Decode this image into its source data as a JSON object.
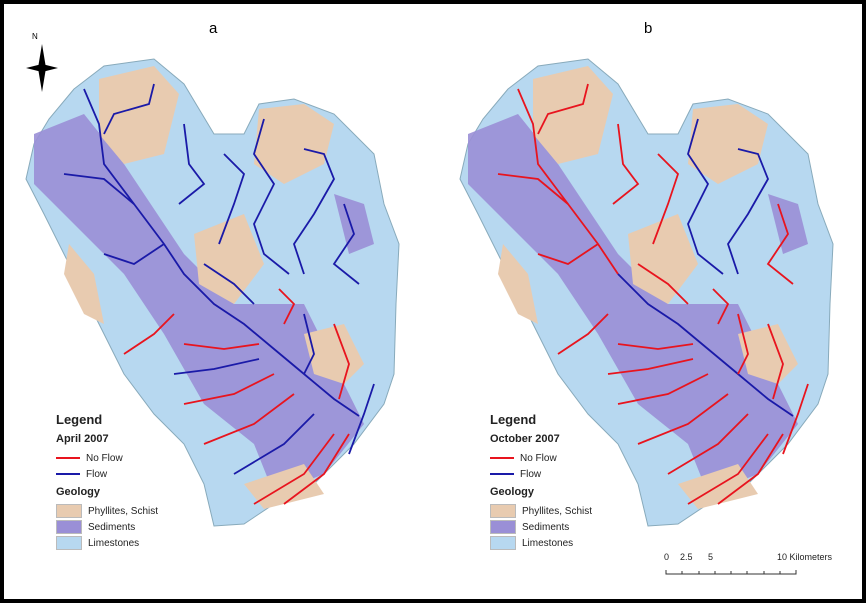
{
  "panels": [
    {
      "label": "a",
      "legend": {
        "title": "Legend",
        "period": "April 2007",
        "no_flow": "No Flow",
        "flow": "Flow",
        "geology_title": "Geology",
        "geology": [
          "Phyllites, Schist",
          "Sediments",
          "Limestones"
        ]
      }
    },
    {
      "label": "b",
      "legend": {
        "title": "Legend",
        "period": "October 2007",
        "no_flow": "No Flow",
        "flow": "Flow",
        "geology_title": "Geology",
        "geology": [
          "Phyllites, Schist",
          "Sediments",
          "Limestones"
        ]
      }
    }
  ],
  "north_arrow": {
    "label": "N"
  },
  "scale_bar": {
    "ticks": [
      "0",
      "2.5",
      "5",
      "10 Kilometers"
    ]
  },
  "colors": {
    "no_flow": "#e8141e",
    "flow": "#1a1aa8",
    "phyllites": "#e8cbb0",
    "sediments": "#9a8fd6",
    "limestones": "#b7d8f0"
  }
}
